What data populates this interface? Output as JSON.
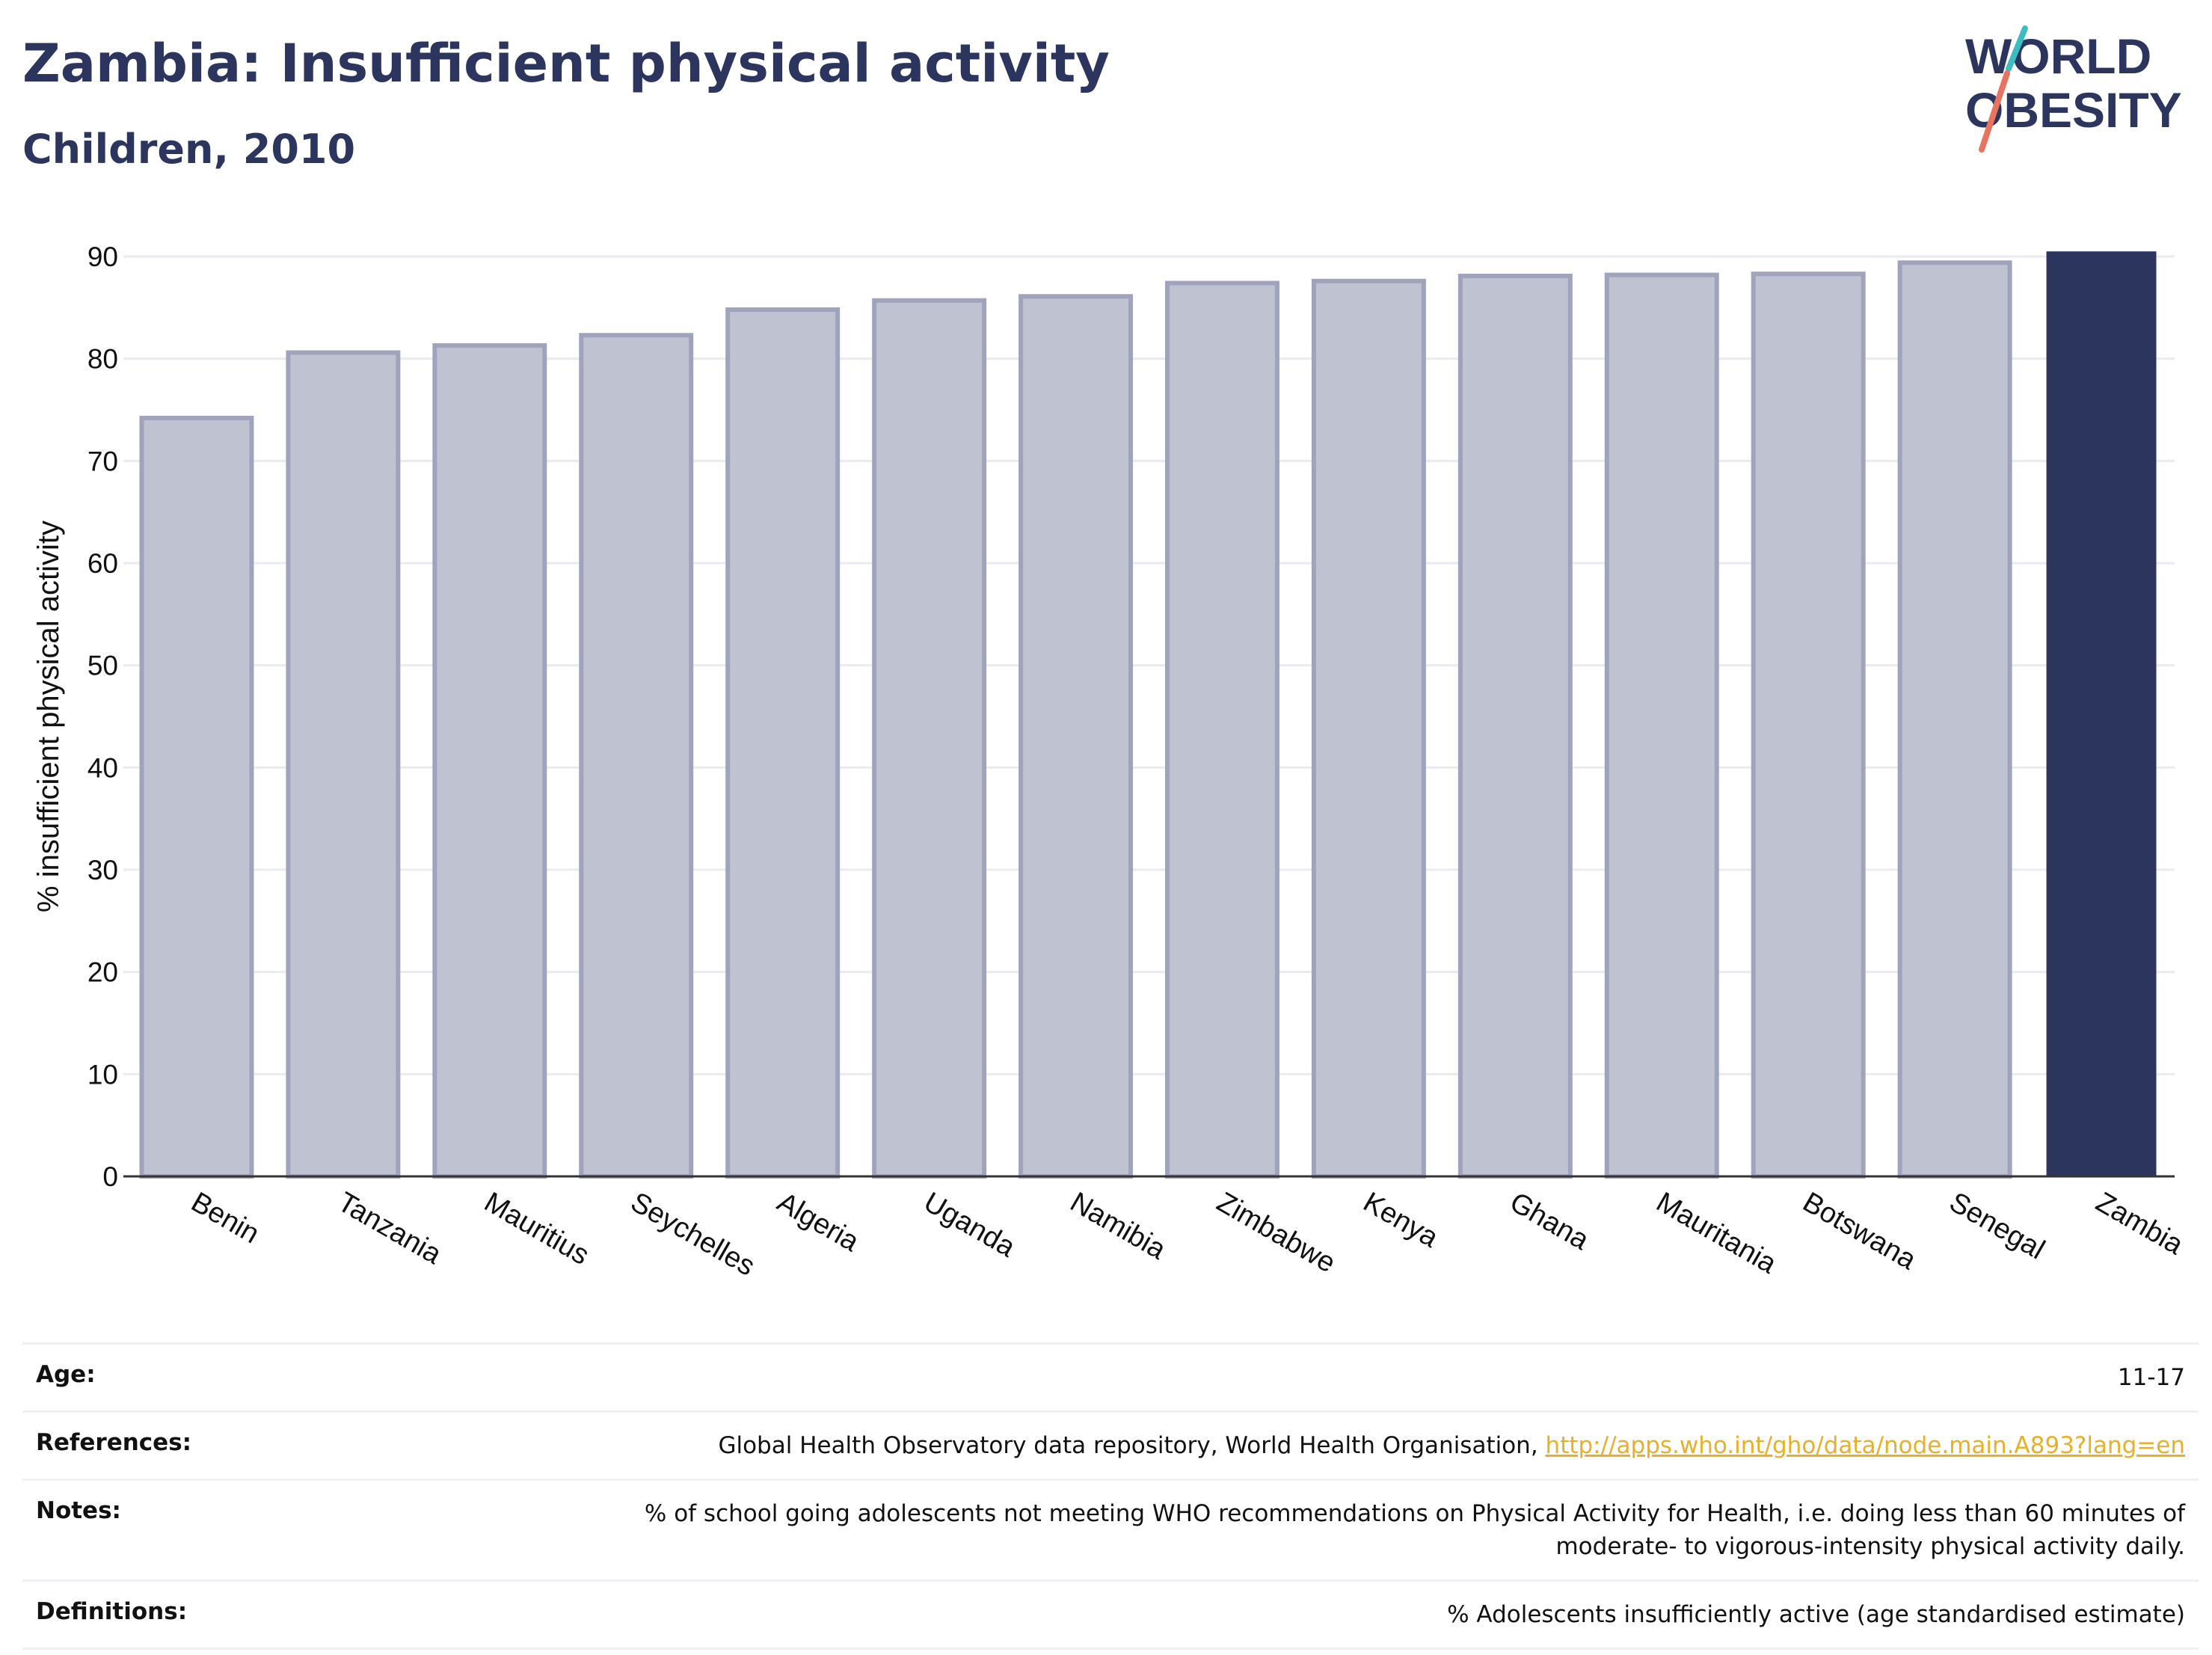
{
  "header": {
    "title": "Zambia: Insufficient physical activity",
    "subtitle": "Children, 2010"
  },
  "logo": {
    "line1": "WORLD",
    "line2": "OBESITY"
  },
  "colors": {
    "highlight_bar": "#2b355e",
    "other_bar_fill": "#bfc2d1",
    "other_bar_stroke": "#9fa4bc",
    "logo_teal": "#3dbdc1",
    "logo_coral": "#e8735f",
    "link": "#e8b02a"
  },
  "chart_data": {
    "type": "bar",
    "title": "Zambia: Insufficient physical activity",
    "subtitle": "Children, 2010",
    "ylabel": "% insufficient physical activity",
    "xlabel": "",
    "ylim": [
      0,
      90
    ],
    "yticks": [
      0,
      10,
      20,
      30,
      40,
      50,
      60,
      70,
      80,
      90
    ],
    "grid": true,
    "highlight": "Zambia",
    "categories": [
      "Benin",
      "Tanzania",
      "Mauritius",
      "Seychelles",
      "Algeria",
      "Uganda",
      "Namibia",
      "Zimbabwe",
      "Kenya",
      "Ghana",
      "Mauritania",
      "Botswana",
      "Senegal",
      "Zambia"
    ],
    "values": [
      74.2,
      80.6,
      81.3,
      82.3,
      84.8,
      85.7,
      86.1,
      87.4,
      87.6,
      88.1,
      88.2,
      88.3,
      89.4,
      90.5
    ]
  },
  "meta": {
    "age_label": "Age:",
    "age_value": "11-17",
    "references_label": "References:",
    "references_text": "Global Health Observatory data repository, World Health Organisation, ",
    "references_link": "http://apps.who.int/gho/data/node.main.A893?lang=en",
    "notes_label": "Notes:",
    "notes_line1": "% of school going adolescents not meeting WHO recommendations on Physical Activity for Health, i.e. doing less than 60 minutes of",
    "notes_line2": "moderate- to vigorous-intensity physical activity daily.",
    "definitions_label": "Definitions:",
    "definitions_value": "% Adolescents insufficiently active (age standardised estimate)"
  }
}
